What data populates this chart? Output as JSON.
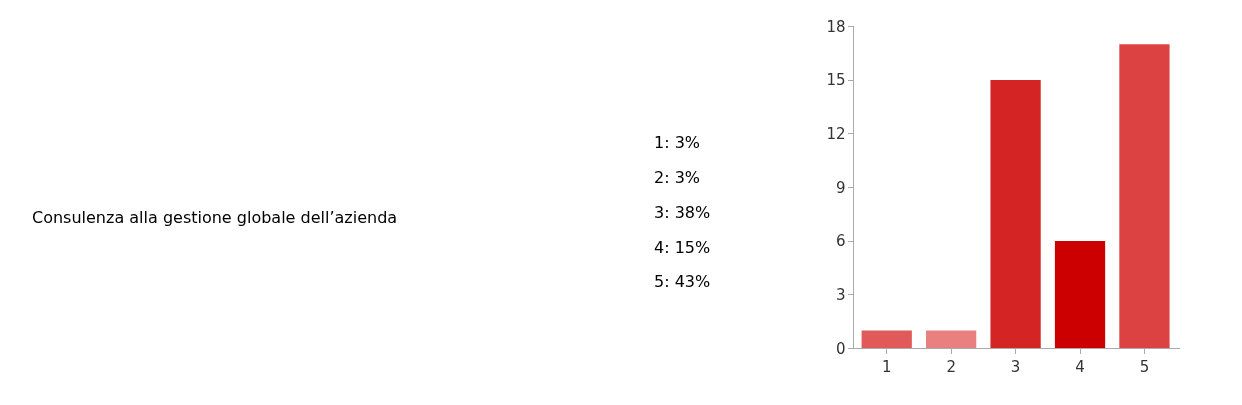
{
  "chart_data": {
    "type": "bar",
    "title": "Consulenza alla gestione globale dell’azienda",
    "annotations": [
      "1: 3%",
      "2: 3%",
      "3: 38%",
      "4: 15%",
      "5: 43%"
    ],
    "categories": [
      "1",
      "2",
      "3",
      "4",
      "5"
    ],
    "values": [
      1,
      1,
      15,
      6,
      17
    ],
    "colors": [
      "#e05a5a",
      "#e88080",
      "#d42424",
      "#cc0000",
      "#dc4242"
    ],
    "ylim": [
      0,
      18
    ],
    "yticks": [
      0,
      3,
      6,
      9,
      12,
      15,
      18
    ]
  }
}
